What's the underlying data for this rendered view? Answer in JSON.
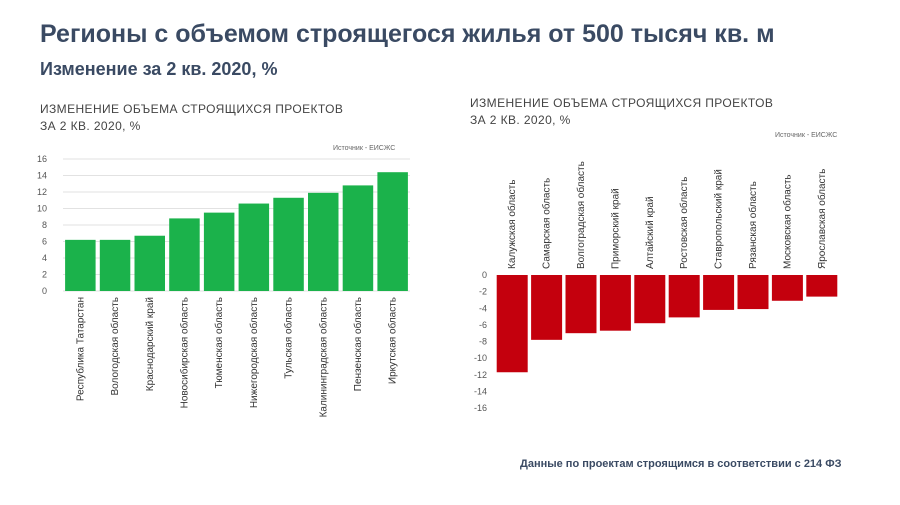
{
  "page": {
    "title": "Регионы с объемом строящегося жилья от 500 тысяч кв. м",
    "subtitle": "Изменение за 2 кв. 2020, %",
    "footnote": "Данные по проектам строящимся в соответствии с 214 ФЗ"
  },
  "colors": {
    "positive": "#1bb24b",
    "negative": "#c4000d",
    "text": "#3a4a63"
  },
  "chart_data": [
    {
      "type": "bar",
      "title_line1": "ИЗМЕНЕНИЕ ОБЪЕМА СТРОЯЩИХСЯ ПРОЕКТОВ",
      "title_line2": "ЗА 2 КВ. 2020, %",
      "source": "Источник - ЕИСЖС",
      "categories": [
        "Республика Татарстан",
        "Вологодская область",
        "Краснодарский край",
        "Новосибирская область",
        "Тюменская область",
        "Нижегородская область",
        "Тульская область",
        "Калининградская область",
        "Пензенская область",
        "Иркутская область"
      ],
      "values": [
        6.2,
        6.2,
        6.7,
        8.8,
        9.5,
        10.6,
        11.3,
        11.9,
        12.8,
        14.4
      ],
      "ylim": [
        0,
        16
      ],
      "yticks": [
        0,
        2,
        4,
        6,
        8,
        10,
        12,
        14,
        16
      ],
      "grid": true,
      "xlabel": "",
      "ylabel": ""
    },
    {
      "type": "bar",
      "title_line1": "ИЗМЕНЕНИЕ ОБЪЕМА СТРОЯЩИХСЯ ПРОЕКТОВ",
      "title_line2": "ЗА 2 КВ. 2020, %",
      "source": "Источник - ЕИСЖС",
      "categories": [
        "Калужская область",
        "Самарская область",
        "Волгоградская область",
        "Приморский край",
        "Алтайский край",
        "Ростовская область",
        "Ставропольский край",
        "Рязанская область",
        "Московская область",
        "Ярославская область"
      ],
      "values": [
        -11.7,
        -7.8,
        -7.0,
        -6.7,
        -5.8,
        -5.1,
        -4.2,
        -4.1,
        -3.1,
        -2.6
      ],
      "ylim": [
        -16,
        0
      ],
      "yticks": [
        0,
        -2,
        -4,
        -6,
        -8,
        -10,
        -12,
        -14,
        -16
      ],
      "grid": true,
      "xlabel": "",
      "ylabel": ""
    }
  ]
}
